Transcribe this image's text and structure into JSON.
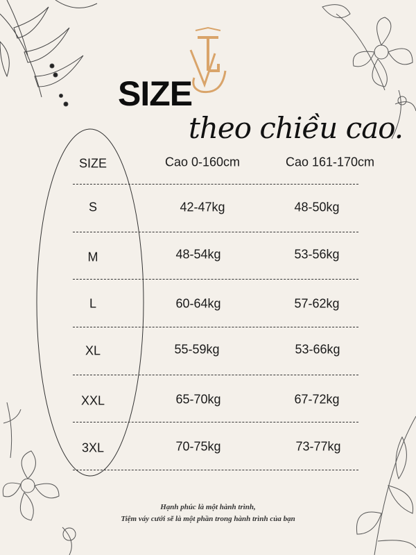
{
  "logo_text": "VTC",
  "title": "SIZE",
  "subtitle": "theo chiều cao.",
  "table": {
    "headers": [
      "SIZE",
      "Cao 0-160cm",
      "Cao 161-170cm"
    ],
    "rows": [
      [
        "S",
        "42-47kg",
        "48-50kg"
      ],
      [
        "M",
        "48-54kg",
        "53-56kg"
      ],
      [
        "L",
        "60-64kg",
        "57-62kg"
      ],
      [
        "XL",
        "55-59kg",
        "53-66kg"
      ],
      [
        "XXL",
        "65-70kg",
        "67-72kg"
      ],
      [
        "3XL",
        "70-75kg",
        "73-77kg"
      ]
    ]
  },
  "footer": {
    "line1": "Hạnh phúc là một hành trình,",
    "line2": "Tiệm váy cưới sẽ là một phần trong hành trình của bạn"
  },
  "colors": {
    "background": "#f4f0ea",
    "logo": "#d9a46a",
    "text": "#1a1a1a"
  }
}
